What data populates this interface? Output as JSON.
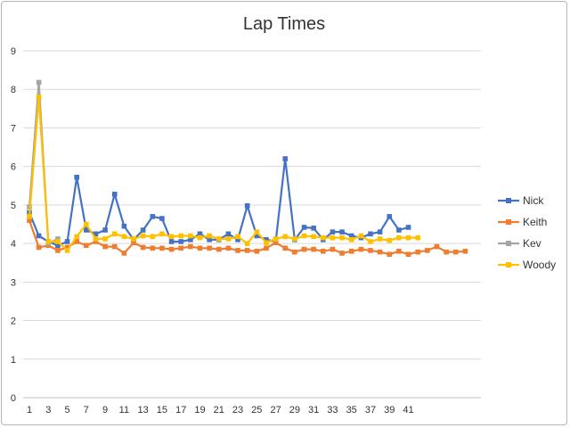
{
  "chart_data": {
    "type": "line",
    "title": "Lap Times",
    "xlabel": "",
    "ylabel": "",
    "ylim": [
      0,
      9
    ],
    "y_ticks": [
      0,
      1,
      2,
      3,
      4,
      5,
      6,
      7,
      8,
      9
    ],
    "x_range": [
      1,
      48
    ],
    "x_tick_labels": [
      1,
      3,
      5,
      7,
      9,
      11,
      13,
      15,
      17,
      19,
      21,
      23,
      25,
      27,
      29,
      31,
      33,
      35,
      37,
      39,
      41
    ],
    "grid": "horizontal",
    "legend_position": "right",
    "series": [
      {
        "name": "Nick",
        "color": "#4472c4",
        "x": [
          1,
          2,
          3,
          4,
          5,
          6,
          7,
          8,
          9,
          10,
          11,
          12,
          13,
          14,
          15,
          16,
          17,
          18,
          19,
          20,
          21,
          22,
          23,
          24,
          25,
          26,
          27,
          28,
          29,
          30,
          31,
          32,
          33,
          34,
          35,
          36,
          37,
          38,
          39,
          40,
          41
        ],
        "values": [
          4.8,
          4.2,
          4.05,
          3.95,
          4.05,
          5.72,
          4.35,
          4.25,
          4.35,
          5.28,
          4.45,
          4.1,
          4.35,
          4.7,
          4.65,
          4.05,
          4.05,
          4.1,
          4.25,
          4.1,
          4.1,
          4.25,
          4.1,
          4.98,
          4.2,
          4.1,
          4.05,
          6.2,
          4.1,
          4.42,
          4.4,
          4.1,
          4.3,
          4.3,
          4.2,
          4.15,
          4.25,
          4.3,
          4.7,
          4.35,
          4.42
        ]
      },
      {
        "name": "Keith",
        "color": "#ed7d31",
        "x": [
          1,
          2,
          3,
          4,
          5,
          6,
          7,
          8,
          9,
          10,
          11,
          12,
          13,
          14,
          15,
          16,
          17,
          18,
          19,
          20,
          21,
          22,
          23,
          24,
          25,
          26,
          27,
          28,
          29,
          30,
          31,
          32,
          33,
          34,
          35,
          36,
          37,
          38,
          39,
          40,
          41,
          42,
          43,
          44,
          45,
          46,
          47
        ],
        "values": [
          4.6,
          3.9,
          3.95,
          3.82,
          3.9,
          4.05,
          3.95,
          4.05,
          3.92,
          3.92,
          3.75,
          4.02,
          3.9,
          3.88,
          3.88,
          3.85,
          3.88,
          3.92,
          3.88,
          3.88,
          3.85,
          3.88,
          3.82,
          3.82,
          3.8,
          3.88,
          4.02,
          3.88,
          3.78,
          3.85,
          3.85,
          3.8,
          3.85,
          3.75,
          3.8,
          3.85,
          3.82,
          3.78,
          3.72,
          3.8,
          3.72,
          3.78,
          3.82,
          3.92,
          3.78,
          3.78,
          3.8
        ]
      },
      {
        "name": "Kev",
        "color": "#a5a5a5",
        "x": [
          1,
          2,
          3,
          4
        ],
        "values": [
          4.95,
          8.18,
          4.0,
          4.12
        ]
      },
      {
        "name": "Woody",
        "color": "#ffc000",
        "x": [
          1,
          2,
          3,
          4,
          5,
          6,
          7,
          8,
          9,
          10,
          11,
          12,
          13,
          14,
          15,
          16,
          17,
          18,
          19,
          20,
          21,
          22,
          23,
          24,
          25,
          26,
          27,
          28,
          29,
          30,
          31,
          32,
          33,
          34,
          35,
          36,
          37,
          38,
          39,
          40,
          41,
          42
        ],
        "values": [
          4.7,
          7.8,
          4.05,
          4.05,
          3.82,
          4.18,
          4.5,
          4.12,
          4.12,
          4.25,
          4.18,
          4.12,
          4.2,
          4.18,
          4.25,
          4.18,
          4.2,
          4.2,
          4.15,
          4.2,
          4.12,
          4.12,
          4.18,
          4.0,
          4.3,
          4.02,
          4.12,
          4.18,
          4.12,
          4.2,
          4.18,
          4.15,
          4.15,
          4.15,
          4.1,
          4.2,
          4.05,
          4.12,
          4.08,
          4.15,
          4.15,
          4.15
        ]
      }
    ]
  }
}
